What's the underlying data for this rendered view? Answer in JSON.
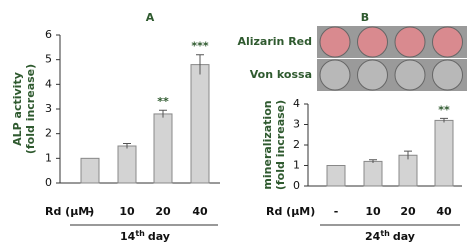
{
  "images": [
    {
      "label": "Alizarin Red",
      "color": "#d98a8f"
    },
    {
      "label": "Von kossa",
      "color": "#b8b8b8"
    }
  ],
  "chart_data": [
    {
      "type": "bar",
      "panel_label": "A",
      "y_label": [
        "ALP activity",
        "(fold increase)"
      ],
      "x_label": "Rd (μM)",
      "categories": [
        "-",
        "10",
        "20",
        "40"
      ],
      "values": [
        1,
        1.5,
        2.8,
        4.8
      ],
      "errors": [
        0,
        0.1,
        0.15,
        0.4
      ],
      "significance": [
        null,
        null,
        "**",
        "***"
      ],
      "day": [
        "14",
        "th",
        "day"
      ],
      "color": "#d3d3d3",
      "ylim": [
        0,
        6
      ],
      "yticks": [
        0,
        1,
        2,
        3,
        4,
        5,
        6
      ]
    },
    {
      "type": "bar",
      "panel_label": "B",
      "y_label": [
        "mineralization",
        "(fold increase)"
      ],
      "x_label": "Rd (μM)",
      "categories": [
        "-",
        "10",
        "20",
        "40"
      ],
      "values": [
        1,
        1.2,
        1.5,
        3.2
      ],
      "errors": [
        0,
        0.08,
        0.2,
        0.1
      ],
      "significance": [
        null,
        null,
        null,
        "**"
      ],
      "day": [
        "24",
        "th",
        "day"
      ],
      "color": "#d3d3d3",
      "ylim": [
        0,
        4
      ],
      "yticks": [
        0,
        1,
        2,
        3,
        4
      ]
    }
  ]
}
